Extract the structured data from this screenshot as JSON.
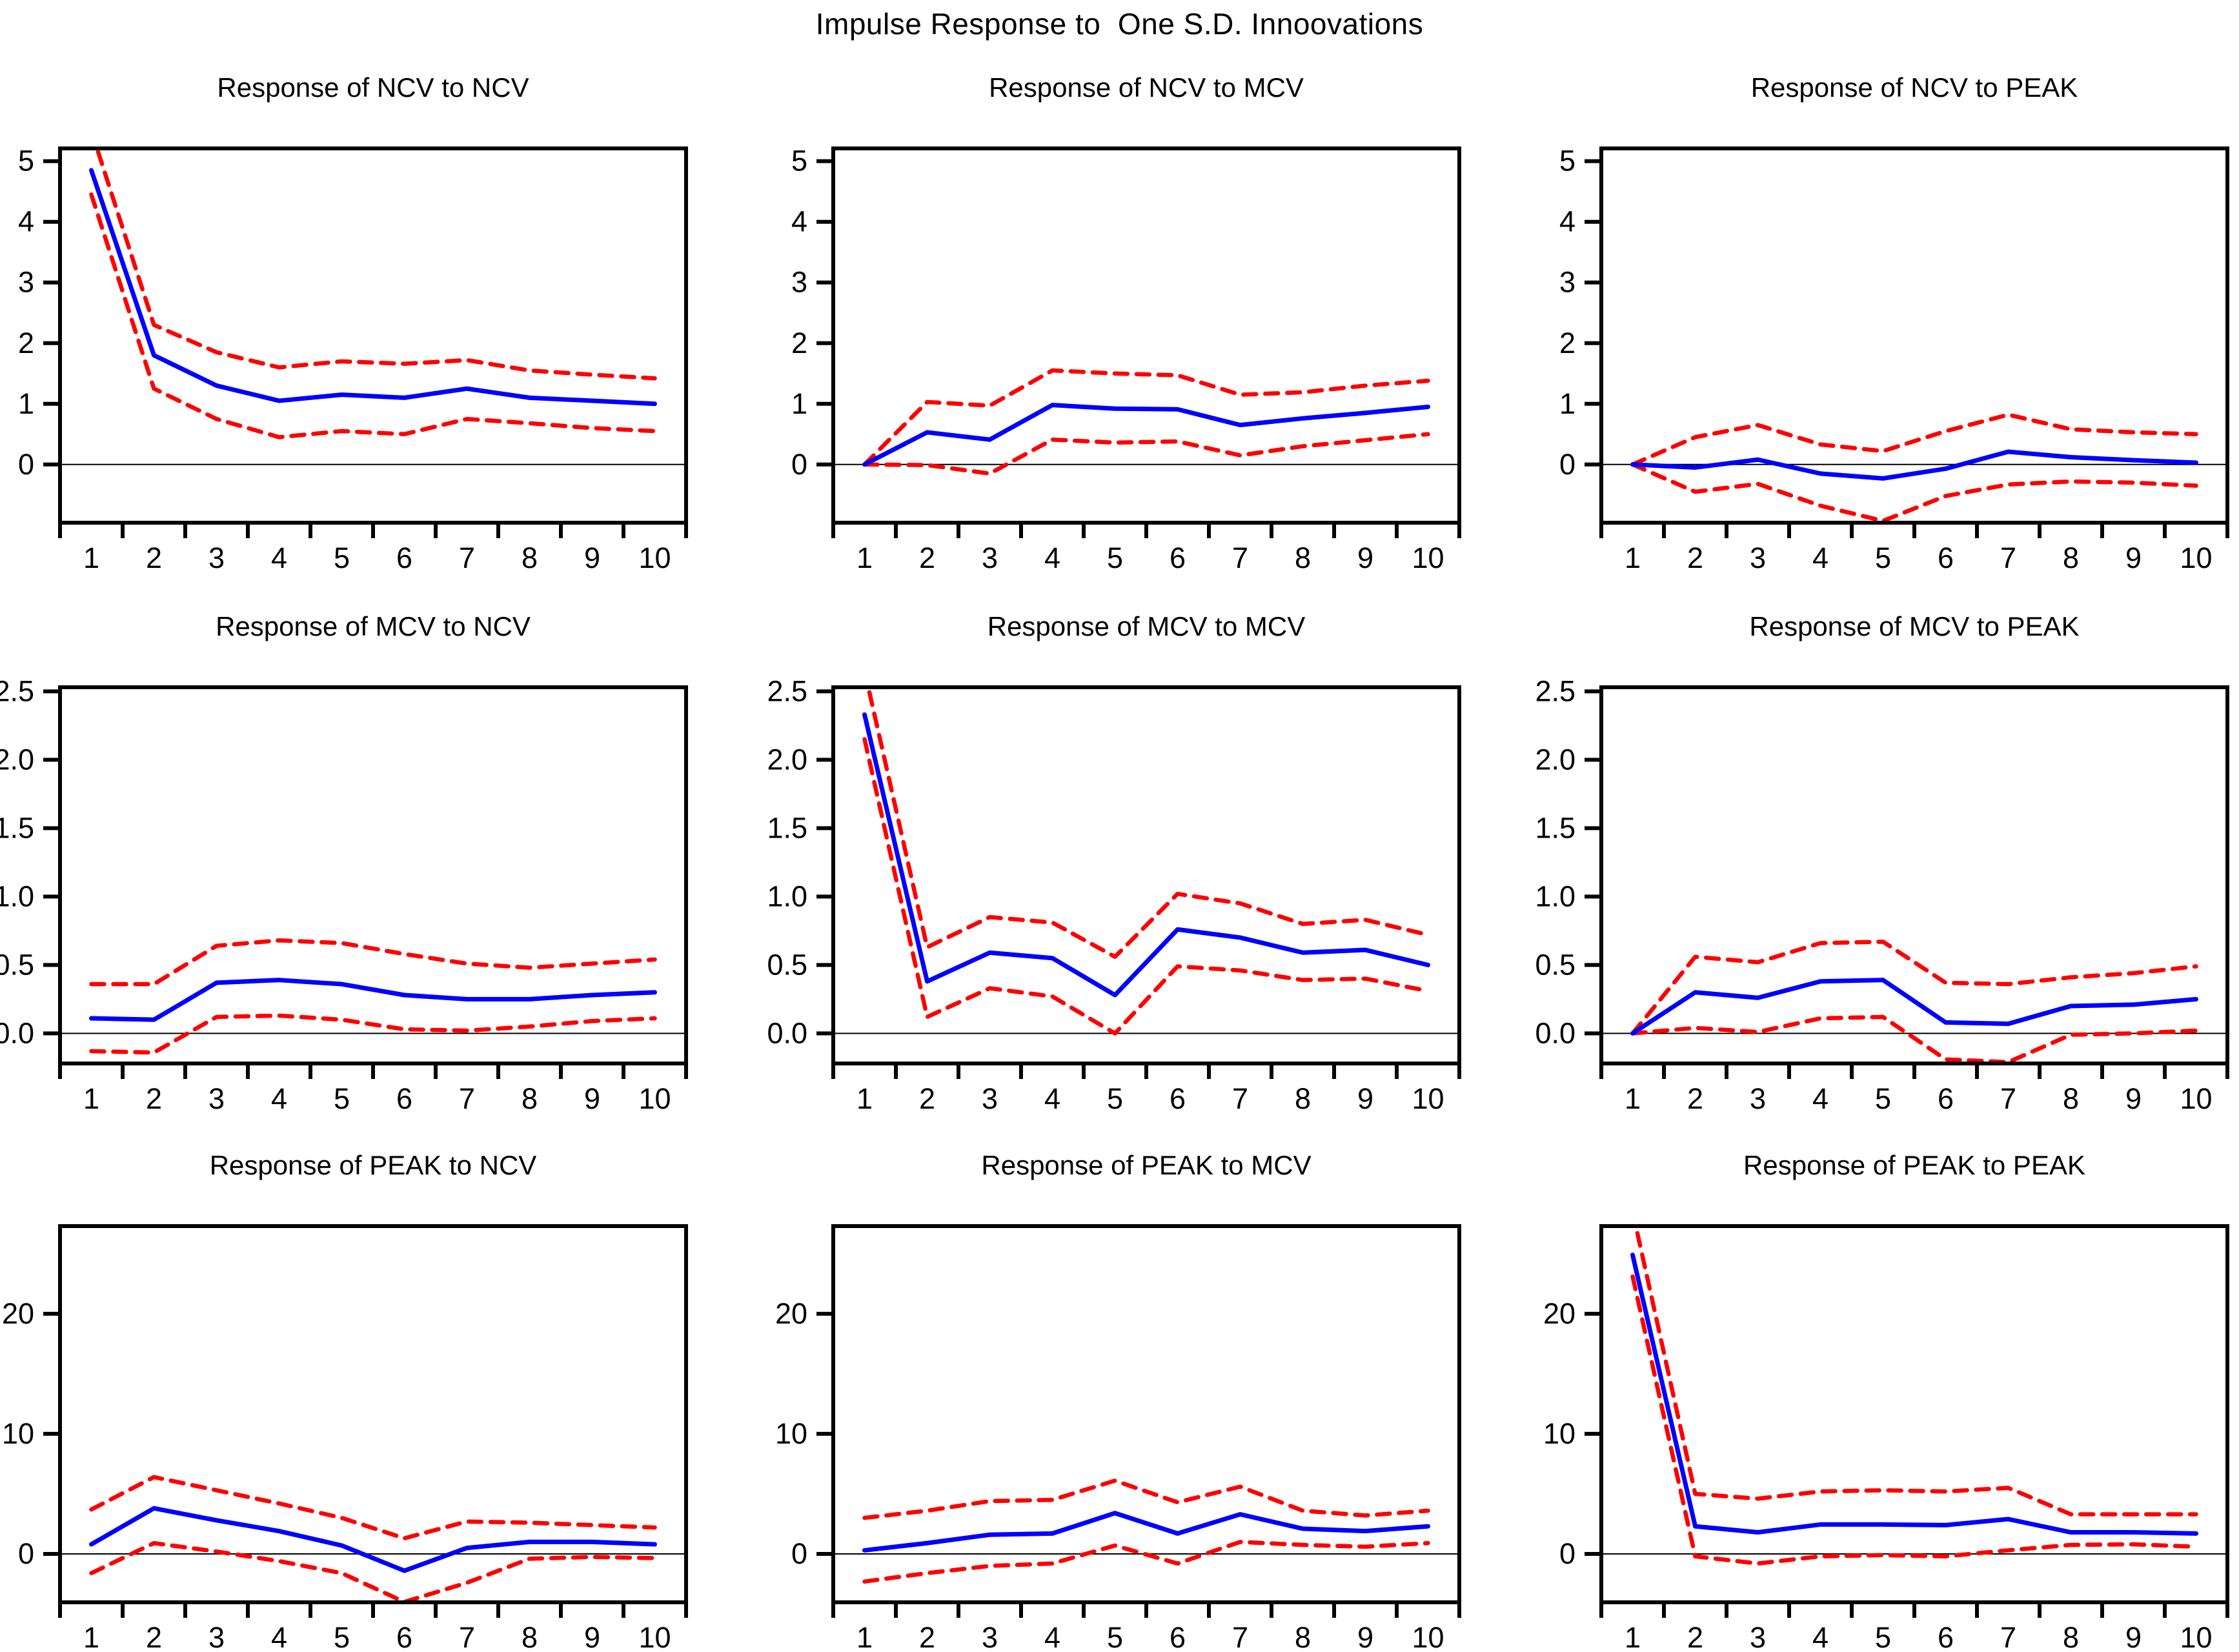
{
  "title": "Impulse Response to  One S.D. Innoovations",
  "colors": {
    "response_line": "#0000ff",
    "band_line": "#ff0000",
    "axis": "#000000",
    "zero_line": "#000000",
    "background": "#ffffff"
  },
  "chart_data": [
    {
      "type": "line",
      "title": "Response of NCV to NCV",
      "x": [
        1,
        2,
        3,
        4,
        5,
        6,
        7,
        8,
        9,
        10
      ],
      "ylim": [
        -0.96,
        5.21
      ],
      "yticks": [
        {
          "v": 5,
          "label": "5"
        },
        {
          "v": 4,
          "label": "4"
        },
        {
          "v": 3,
          "label": "3"
        },
        {
          "v": 2,
          "label": "2"
        },
        {
          "v": 1,
          "label": "1"
        },
        {
          "v": 0,
          "label": "0"
        }
      ],
      "series": [
        {
          "name": "upper-band",
          "style": "dashed",
          "color": "#ff0000",
          "values": [
            5.5,
            2.3,
            1.85,
            1.6,
            1.7,
            1.66,
            1.72,
            1.55,
            1.48,
            1.42
          ]
        },
        {
          "name": "lower-band",
          "style": "dashed",
          "color": "#ff0000",
          "values": [
            4.45,
            1.25,
            0.75,
            0.45,
            0.55,
            0.5,
            0.75,
            0.68,
            0.6,
            0.55
          ]
        },
        {
          "name": "response",
          "style": "solid",
          "color": "#0000ff",
          "values": [
            4.85,
            1.8,
            1.3,
            1.05,
            1.15,
            1.1,
            1.25,
            1.1,
            1.05,
            1.0
          ]
        }
      ]
    },
    {
      "type": "line",
      "title": "Response of NCV to MCV",
      "x": [
        1,
        2,
        3,
        4,
        5,
        6,
        7,
        8,
        9,
        10
      ],
      "ylim": [
        -0.96,
        5.21
      ],
      "yticks": [
        {
          "v": 5,
          "label": "5"
        },
        {
          "v": 4,
          "label": "4"
        },
        {
          "v": 3,
          "label": "3"
        },
        {
          "v": 2,
          "label": "2"
        },
        {
          "v": 1,
          "label": "1"
        },
        {
          "v": 0,
          "label": "0"
        }
      ],
      "series": [
        {
          "name": "upper-band",
          "style": "dashed",
          "color": "#ff0000",
          "values": [
            0,
            1.03,
            0.97,
            1.55,
            1.5,
            1.47,
            1.15,
            1.19,
            1.3,
            1.38
          ]
        },
        {
          "name": "lower-band",
          "style": "dashed",
          "color": "#ff0000",
          "values": [
            0,
            -0.01,
            -0.15,
            0.41,
            0.36,
            0.38,
            0.15,
            0.3,
            0.4,
            0.5
          ]
        },
        {
          "name": "response",
          "style": "solid",
          "color": "#0000ff",
          "values": [
            0,
            0.53,
            0.41,
            0.98,
            0.92,
            0.91,
            0.65,
            0.76,
            0.85,
            0.95
          ]
        }
      ]
    },
    {
      "type": "line",
      "title": "Response of NCV to PEAK",
      "x": [
        1,
        2,
        3,
        4,
        5,
        6,
        7,
        8,
        9,
        10
      ],
      "ylim": [
        -0.96,
        5.21
      ],
      "yticks": [
        {
          "v": 5,
          "label": "5"
        },
        {
          "v": 4,
          "label": "4"
        },
        {
          "v": 3,
          "label": "3"
        },
        {
          "v": 2,
          "label": "2"
        },
        {
          "v": 1,
          "label": "1"
        },
        {
          "v": 0,
          "label": "0"
        }
      ],
      "series": [
        {
          "name": "upper-band",
          "style": "dashed",
          "color": "#ff0000",
          "values": [
            0,
            0.45,
            0.65,
            0.33,
            0.22,
            0.55,
            0.82,
            0.58,
            0.53,
            0.5
          ]
        },
        {
          "name": "lower-band",
          "style": "dashed",
          "color": "#ff0000",
          "values": [
            0,
            -0.45,
            -0.32,
            -0.68,
            -0.93,
            -0.52,
            -0.33,
            -0.28,
            -0.3,
            -0.35
          ]
        },
        {
          "name": "response",
          "style": "solid",
          "color": "#0000ff",
          "values": [
            0,
            -0.05,
            0.08,
            -0.15,
            -0.23,
            -0.07,
            0.21,
            0.12,
            0.07,
            0.03
          ]
        }
      ]
    },
    {
      "type": "line",
      "title": "Response of MCV to NCV",
      "x": [
        1,
        2,
        3,
        4,
        5,
        6,
        7,
        8,
        9,
        10
      ],
      "ylim": [
        -0.22,
        2.53
      ],
      "yticks": [
        {
          "v": 2.5,
          "label": "2.5"
        },
        {
          "v": 2.0,
          "label": "2.0"
        },
        {
          "v": 1.5,
          "label": "1.5"
        },
        {
          "v": 1.0,
          "label": "1.0"
        },
        {
          "v": 0.5,
          "label": "0.5"
        },
        {
          "v": 0.0,
          "label": "0.0"
        }
      ],
      "series": [
        {
          "name": "upper-band",
          "style": "dashed",
          "color": "#ff0000",
          "values": [
            0.36,
            0.36,
            0.64,
            0.68,
            0.66,
            0.58,
            0.51,
            0.48,
            0.51,
            0.54
          ]
        },
        {
          "name": "lower-band",
          "style": "dashed",
          "color": "#ff0000",
          "values": [
            -0.13,
            -0.14,
            0.12,
            0.13,
            0.1,
            0.03,
            0.02,
            0.05,
            0.09,
            0.11
          ]
        },
        {
          "name": "response",
          "style": "solid",
          "color": "#0000ff",
          "values": [
            0.11,
            0.1,
            0.37,
            0.39,
            0.36,
            0.28,
            0.25,
            0.25,
            0.28,
            0.3
          ]
        }
      ]
    },
    {
      "type": "line",
      "title": "Response of MCV to MCV",
      "x": [
        1,
        2,
        3,
        4,
        5,
        6,
        7,
        8,
        9,
        10
      ],
      "ylim": [
        -0.22,
        2.53
      ],
      "yticks": [
        {
          "v": 2.5,
          "label": "2.5"
        },
        {
          "v": 2.0,
          "label": "2.0"
        },
        {
          "v": 1.5,
          "label": "1.5"
        },
        {
          "v": 1.0,
          "label": "1.0"
        },
        {
          "v": 0.5,
          "label": "0.5"
        },
        {
          "v": 0.0,
          "label": "0.0"
        }
      ],
      "series": [
        {
          "name": "upper-band",
          "style": "dashed",
          "color": "#ff0000",
          "values": [
            2.65,
            0.63,
            0.85,
            0.81,
            0.56,
            1.02,
            0.95,
            0.8,
            0.83,
            0.72
          ]
        },
        {
          "name": "lower-band",
          "style": "dashed",
          "color": "#ff0000",
          "values": [
            2.15,
            0.12,
            0.33,
            0.27,
            0.0,
            0.49,
            0.46,
            0.39,
            0.4,
            0.31
          ]
        },
        {
          "name": "response",
          "style": "solid",
          "color": "#0000ff",
          "values": [
            2.33,
            0.38,
            0.59,
            0.55,
            0.28,
            0.76,
            0.7,
            0.59,
            0.61,
            0.5
          ]
        }
      ]
    },
    {
      "type": "line",
      "title": "Response of MCV to PEAK",
      "x": [
        1,
        2,
        3,
        4,
        5,
        6,
        7,
        8,
        9,
        10
      ],
      "ylim": [
        -0.22,
        2.53
      ],
      "yticks": [
        {
          "v": 2.5,
          "label": "2.5"
        },
        {
          "v": 2.0,
          "label": "2.0"
        },
        {
          "v": 1.5,
          "label": "1.5"
        },
        {
          "v": 1.0,
          "label": "1.0"
        },
        {
          "v": 0.5,
          "label": "0.5"
        },
        {
          "v": 0.0,
          "label": "0.0"
        }
      ],
      "series": [
        {
          "name": "upper-band",
          "style": "dashed",
          "color": "#ff0000",
          "values": [
            0,
            0.56,
            0.52,
            0.66,
            0.67,
            0.37,
            0.36,
            0.41,
            0.44,
            0.49
          ]
        },
        {
          "name": "lower-band",
          "style": "dashed",
          "color": "#ff0000",
          "values": [
            0,
            0.04,
            0.01,
            0.11,
            0.12,
            -0.19,
            -0.21,
            -0.01,
            0.0,
            0.02
          ]
        },
        {
          "name": "response",
          "style": "solid",
          "color": "#0000ff",
          "values": [
            0,
            0.3,
            0.26,
            0.38,
            0.39,
            0.08,
            0.07,
            0.2,
            0.21,
            0.25
          ]
        }
      ]
    },
    {
      "type": "line",
      "title": "Response of PEAK to NCV",
      "x": [
        1,
        2,
        3,
        4,
        5,
        6,
        7,
        8,
        9,
        10
      ],
      "ylim": [
        -4.03,
        27.3
      ],
      "yticks": [
        {
          "v": 20,
          "label": "20"
        },
        {
          "v": 10,
          "label": "10"
        },
        {
          "v": 0,
          "label": "0"
        }
      ],
      "series": [
        {
          "name": "upper-band",
          "style": "dashed",
          "color": "#ff0000",
          "values": [
            3.7,
            6.4,
            5.3,
            4.2,
            3.0,
            1.3,
            2.7,
            2.6,
            2.4,
            2.2
          ]
        },
        {
          "name": "lower-band",
          "style": "dashed",
          "color": "#ff0000",
          "values": [
            -1.6,
            0.9,
            0.2,
            -0.6,
            -1.6,
            -4.0,
            -2.4,
            -0.4,
            -0.25,
            -0.35
          ]
        },
        {
          "name": "response",
          "style": "solid",
          "color": "#0000ff",
          "values": [
            0.8,
            3.8,
            2.8,
            1.9,
            0.7,
            -1.4,
            0.5,
            1.0,
            1.0,
            0.8
          ]
        }
      ]
    },
    {
      "type": "line",
      "title": "Response of PEAK to MCV",
      "x": [
        1,
        2,
        3,
        4,
        5,
        6,
        7,
        8,
        9,
        10
      ],
      "ylim": [
        -4.03,
        27.3
      ],
      "yticks": [
        {
          "v": 20,
          "label": "20"
        },
        {
          "v": 10,
          "label": "10"
        },
        {
          "v": 0,
          "label": "0"
        }
      ],
      "series": [
        {
          "name": "upper-band",
          "style": "dashed",
          "color": "#ff0000",
          "values": [
            3.0,
            3.6,
            4.4,
            4.5,
            6.1,
            4.3,
            5.6,
            3.6,
            3.2,
            3.6
          ]
        },
        {
          "name": "lower-band",
          "style": "dashed",
          "color": "#ff0000",
          "values": [
            -2.3,
            -1.6,
            -1.0,
            -0.8,
            0.7,
            -0.8,
            1.0,
            0.75,
            0.6,
            0.9
          ]
        },
        {
          "name": "response",
          "style": "solid",
          "color": "#0000ff",
          "values": [
            0.3,
            0.9,
            1.6,
            1.7,
            3.4,
            1.7,
            3.3,
            2.1,
            1.9,
            2.3
          ]
        }
      ]
    },
    {
      "type": "line",
      "title": "Response of PEAK to PEAK",
      "x": [
        1,
        2,
        3,
        4,
        5,
        6,
        7,
        8,
        9,
        10
      ],
      "ylim": [
        -4.03,
        27.3
      ],
      "yticks": [
        {
          "v": 20,
          "label": "20"
        },
        {
          "v": 10,
          "label": "10"
        },
        {
          "v": 0,
          "label": "0"
        }
      ],
      "series": [
        {
          "name": "upper-band",
          "style": "dashed",
          "color": "#ff0000",
          "values": [
            28.5,
            5.0,
            4.6,
            5.2,
            5.3,
            5.2,
            5.5,
            3.3,
            3.3,
            3.3
          ]
        },
        {
          "name": "lower-band",
          "style": "dashed",
          "color": "#ff0000",
          "values": [
            23.1,
            -0.2,
            -0.8,
            -0.2,
            -0.1,
            -0.2,
            0.3,
            0.75,
            0.8,
            0.6
          ]
        },
        {
          "name": "response",
          "style": "solid",
          "color": "#0000ff",
          "values": [
            24.9,
            2.3,
            1.8,
            2.45,
            2.45,
            2.4,
            2.9,
            1.8,
            1.8,
            1.7
          ]
        }
      ]
    }
  ]
}
